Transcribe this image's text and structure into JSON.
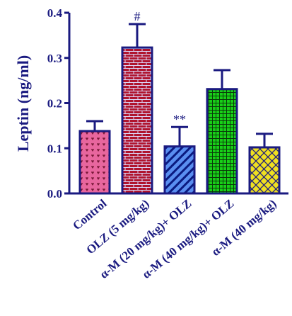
{
  "chart_data": {
    "type": "bar",
    "ylabel": "Leptin (ng/ml)",
    "ylim": [
      0,
      0.4
    ],
    "yticks": [
      "0.0",
      "0.1",
      "0.2",
      "0.3",
      "0.4"
    ],
    "ytick_values": [
      0.0,
      0.1,
      0.2,
      0.3,
      0.4
    ],
    "categories": [
      "Control",
      "OLZ (5 mg/kg)",
      "α-M (20 mg/kg)+ OLZ",
      "α-M (40 mg/kg)+ OLZ",
      "α-M (40 mg/kg)"
    ],
    "values": [
      0.138,
      0.323,
      0.104,
      0.231,
      0.102
    ],
    "errors": [
      0.022,
      0.052,
      0.043,
      0.042,
      0.03
    ],
    "annotations": [
      "",
      "#",
      "**",
      "",
      ""
    ],
    "colors": {
      "axis": "#1a1a80",
      "bar_fills": [
        "#e8669e",
        "#b0142e",
        "#5a8ef0",
        "#18d018",
        "#f0e020"
      ],
      "bar_patterns": [
        "#6b1030",
        "#e0e0ff",
        "#0a1a80",
        "#0a3a0a",
        "#1a1a80"
      ]
    }
  }
}
